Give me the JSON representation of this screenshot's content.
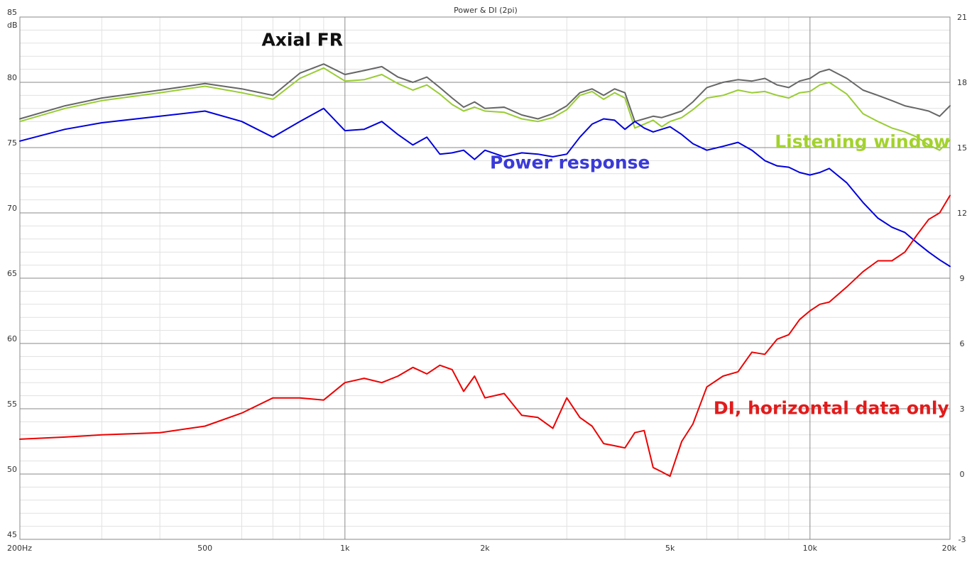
{
  "chart_data": {
    "type": "line",
    "title": "Power & DI (2pi)",
    "xscale": "log",
    "xlim": [
      200,
      20000
    ],
    "x_ticks": [
      {
        "value": 200,
        "label": "200Hz"
      },
      {
        "value": 500,
        "label": "500"
      },
      {
        "value": 1000,
        "label": "1k"
      },
      {
        "value": 2000,
        "label": "2k"
      },
      {
        "value": 5000,
        "label": "5k"
      },
      {
        "value": 10000,
        "label": "10k"
      },
      {
        "value": 20000,
        "label": "20k"
      }
    ],
    "y_left": {
      "unit": "dB",
      "lim": [
        45,
        85
      ],
      "ticks": [
        45,
        50,
        55,
        60,
        65,
        70,
        75,
        80,
        85
      ]
    },
    "y_right": {
      "lim": [
        -3,
        21
      ],
      "ticks": [
        -3,
        0,
        3,
        6,
        9,
        12,
        15,
        18,
        21
      ]
    },
    "grid": true,
    "series": [
      {
        "key": "axial",
        "name": "Axial FR",
        "color": "#666666",
        "axis": "left",
        "x": [
          200,
          250,
          300,
          400,
          500,
          600,
          700,
          800,
          900,
          1000,
          1100,
          1200,
          1300,
          1400,
          1500,
          1600,
          1700,
          1800,
          1900,
          2000,
          2200,
          2400,
          2600,
          2800,
          3000,
          3200,
          3400,
          3600,
          3800,
          4000,
          4200,
          4400,
          4600,
          4800,
          5000,
          5300,
          5600,
          6000,
          6500,
          7000,
          7500,
          8000,
          8500,
          9000,
          9500,
          10000,
          10500,
          11000,
          12000,
          13000,
          14000,
          15000,
          16000,
          17000,
          18000,
          19000,
          20000
        ],
        "values": [
          77.2,
          78.2,
          78.8,
          79.4,
          79.9,
          79.5,
          79.0,
          80.7,
          81.4,
          80.6,
          80.9,
          81.2,
          80.4,
          80.0,
          80.4,
          79.6,
          78.8,
          78.1,
          78.5,
          78.0,
          78.1,
          77.5,
          77.2,
          77.6,
          78.2,
          79.2,
          79.5,
          79.0,
          79.5,
          79.2,
          77.0,
          77.2,
          77.4,
          77.3,
          77.5,
          77.8,
          78.5,
          79.6,
          80.0,
          80.2,
          80.1,
          80.3,
          79.8,
          79.6,
          80.1,
          80.3,
          80.8,
          81.0,
          80.3,
          79.4,
          79.0,
          78.6,
          78.2,
          78.0,
          77.8,
          77.4,
          78.2
        ]
      },
      {
        "key": "listening",
        "name": "Listening window",
        "color": "#99cc33",
        "axis": "left",
        "x": [
          200,
          250,
          300,
          400,
          500,
          600,
          700,
          800,
          900,
          1000,
          1100,
          1200,
          1300,
          1400,
          1500,
          1600,
          1700,
          1800,
          1900,
          2000,
          2200,
          2400,
          2600,
          2800,
          3000,
          3200,
          3400,
          3600,
          3800,
          4000,
          4200,
          4400,
          4600,
          4800,
          5000,
          5300,
          5600,
          6000,
          6500,
          7000,
          7500,
          8000,
          8500,
          9000,
          9500,
          10000,
          10500,
          11000,
          12000,
          13000,
          14000,
          15000,
          16000,
          17000,
          18000,
          19000,
          20000
        ],
        "values": [
          77.0,
          78.0,
          78.6,
          79.2,
          79.7,
          79.2,
          78.7,
          80.3,
          81.1,
          80.1,
          80.2,
          80.6,
          79.9,
          79.4,
          79.8,
          79.1,
          78.3,
          77.8,
          78.1,
          77.8,
          77.7,
          77.2,
          77.0,
          77.3,
          77.9,
          79.0,
          79.3,
          78.7,
          79.2,
          78.8,
          76.5,
          76.8,
          77.1,
          76.6,
          77.0,
          77.3,
          77.9,
          78.8,
          79.0,
          79.4,
          79.2,
          79.3,
          79.0,
          78.8,
          79.2,
          79.3,
          79.8,
          80.0,
          79.1,
          77.6,
          77.0,
          76.5,
          76.2,
          75.8,
          75.2,
          74.8,
          75.6
        ]
      },
      {
        "key": "power",
        "name": "Power response",
        "color": "#0000dd",
        "axis": "left",
        "x": [
          200,
          250,
          300,
          400,
          500,
          600,
          700,
          800,
          900,
          1000,
          1100,
          1200,
          1300,
          1400,
          1500,
          1600,
          1700,
          1800,
          1900,
          2000,
          2200,
          2400,
          2600,
          2800,
          3000,
          3200,
          3400,
          3600,
          3800,
          4000,
          4200,
          4400,
          4600,
          4800,
          5000,
          5300,
          5600,
          6000,
          6500,
          7000,
          7500,
          8000,
          8500,
          9000,
          9500,
          10000,
          10500,
          11000,
          12000,
          13000,
          14000,
          15000,
          16000,
          17000,
          18000,
          19000,
          20000
        ],
        "values": [
          75.5,
          76.4,
          76.9,
          77.4,
          77.8,
          77.0,
          75.8,
          77.0,
          78.0,
          76.3,
          76.4,
          77.0,
          76.0,
          75.2,
          75.8,
          74.5,
          74.6,
          74.8,
          74.1,
          74.8,
          74.3,
          74.6,
          74.5,
          74.3,
          74.5,
          75.8,
          76.8,
          77.2,
          77.1,
          76.4,
          77.0,
          76.5,
          76.2,
          76.4,
          76.6,
          76.0,
          75.3,
          74.8,
          75.1,
          75.4,
          74.8,
          74.0,
          73.6,
          73.5,
          73.1,
          72.9,
          73.1,
          73.4,
          72.3,
          70.8,
          69.6,
          68.9,
          68.5,
          67.7,
          67.0,
          66.4,
          65.9
        ]
      },
      {
        "key": "di",
        "name": "DI, horizontal data only",
        "color": "#ee0000",
        "axis": "right",
        "x": [
          200,
          250,
          300,
          400,
          500,
          600,
          700,
          800,
          900,
          1000,
          1100,
          1200,
          1300,
          1400,
          1500,
          1600,
          1700,
          1800,
          1900,
          2000,
          2200,
          2400,
          2600,
          2800,
          3000,
          3200,
          3400,
          3600,
          3800,
          4000,
          4200,
          4400,
          4600,
          4800,
          5000,
          5300,
          5600,
          6000,
          6500,
          7000,
          7500,
          8000,
          8500,
          9000,
          9500,
          10000,
          10500,
          11000,
          12000,
          13000,
          14000,
          15000,
          16000,
          17000,
          18000,
          19000,
          20000
        ],
        "values": [
          1.6,
          1.7,
          1.8,
          1.9,
          2.2,
          2.8,
          3.5,
          3.5,
          3.4,
          4.2,
          4.4,
          4.2,
          4.5,
          4.9,
          4.6,
          5.0,
          4.8,
          3.8,
          4.5,
          3.5,
          3.7,
          2.7,
          2.6,
          2.1,
          3.5,
          2.6,
          2.2,
          1.4,
          1.3,
          1.2,
          1.9,
          2.0,
          0.3,
          0.1,
          -0.1,
          1.5,
          2.3,
          4.0,
          4.5,
          4.7,
          5.6,
          5.5,
          6.2,
          6.4,
          7.1,
          7.5,
          7.8,
          7.9,
          8.6,
          9.3,
          9.8,
          9.8,
          10.2,
          11.0,
          11.7,
          12.0,
          12.8
        ]
      }
    ],
    "annotations": [
      {
        "key": "axial",
        "text": "Axial FR",
        "color": "#111111",
        "at": [
          990,
          82.8
        ],
        "anchor": "end"
      },
      {
        "key": "power",
        "text": "Power response",
        "color": "#3a3ad8",
        "at": [
          2050,
          73.4
        ],
        "anchor": "start"
      },
      {
        "key": "listening",
        "text": "Listening window",
        "color": "#a3d22e",
        "at": [
          8400,
          75.0
        ],
        "anchor": "start"
      },
      {
        "key": "di",
        "text": "DI, horizontal data only",
        "color": "#e21b1b",
        "at": [
          6200,
          54.6
        ],
        "anchor": "start"
      }
    ]
  }
}
